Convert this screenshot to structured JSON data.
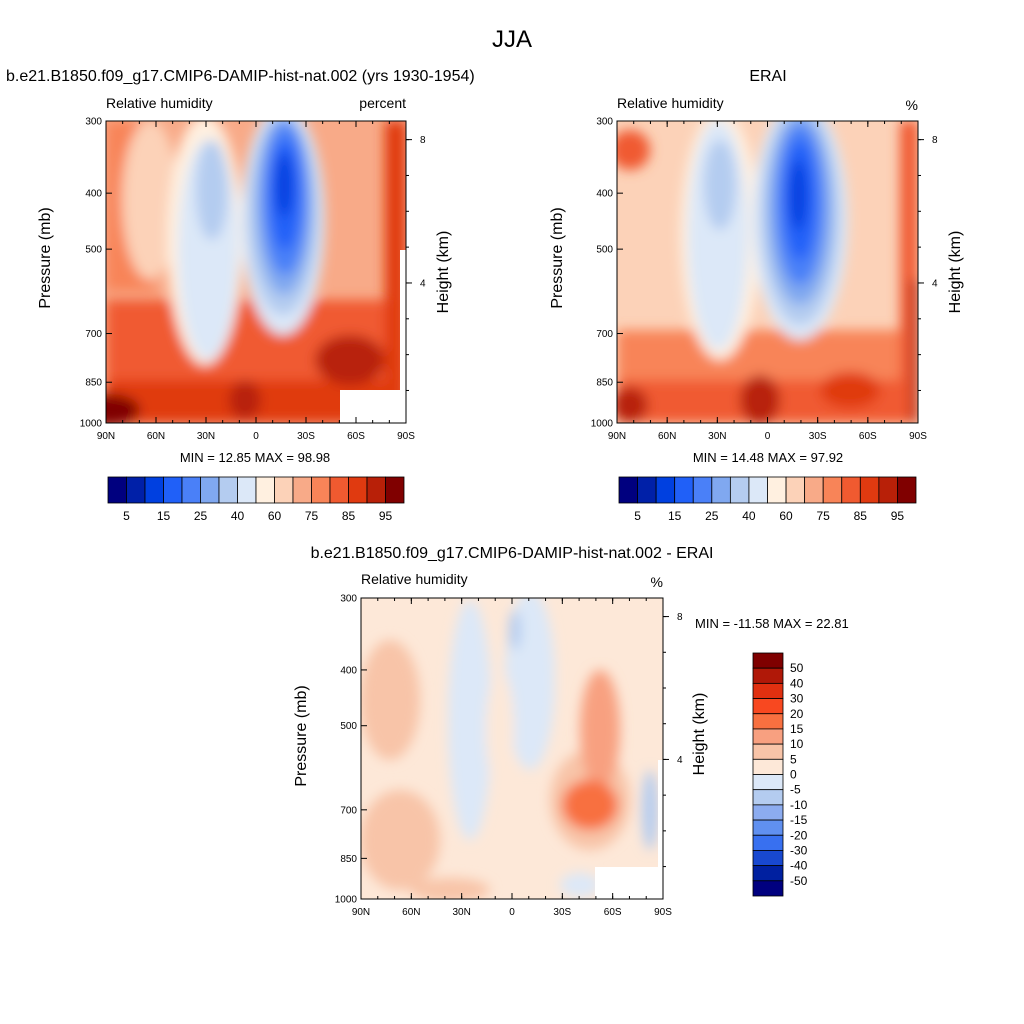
{
  "chart_data": [
    {
      "type": "heatmap",
      "page_title": "JJA",
      "title": "b.e21.B1850.f09_g17.CMIP6-DAMIP-hist-nat.002 (yrs 1930-1954)",
      "left_label": "Relative humidity",
      "units": "percent",
      "ylabel": "Pressure (mb)",
      "ylabel_right": "Height (km)",
      "xticks": [
        "90N",
        "60N",
        "30N",
        "0",
        "30S",
        "60S",
        "90S"
      ],
      "yticks": [
        "300",
        "400",
        "500",
        "700",
        "850",
        "1000"
      ],
      "yticks_right": [
        "8",
        "4"
      ],
      "ylim": [
        1000,
        300
      ],
      "min_label": "MIN =  12.85  MAX =  98.98",
      "min": 12.85,
      "max": 98.98,
      "colorbar_orientation": "horizontal",
      "colorbar_tick_labels": [
        "5",
        "15",
        "25",
        "40",
        "60",
        "75",
        "85",
        "95"
      ],
      "colors": [
        "#00007f",
        "#0020a8",
        "#0040e0",
        "#2060f8",
        "#4a80f8",
        "#80a8f0",
        "#b4ccf0",
        "#dce8f8",
        "#fff0e0",
        "#fcd2b8",
        "#f8aa88",
        "#f88458",
        "#f05a30",
        "#e03a10",
        "#b82008",
        "#800000"
      ]
    },
    {
      "type": "heatmap",
      "title": "ERAI",
      "left_label": "Relative humidity",
      "units": "%",
      "ylabel": "Pressure (mb)",
      "ylabel_right": "Height (km)",
      "xticks": [
        "90N",
        "60N",
        "30N",
        "0",
        "30S",
        "60S",
        "90S"
      ],
      "yticks": [
        "300",
        "400",
        "500",
        "700",
        "850",
        "1000"
      ],
      "yticks_right": [
        "8",
        "4"
      ],
      "ylim": [
        1000,
        300
      ],
      "min_label": "MIN =  14.48  MAX =  97.92",
      "min": 14.48,
      "max": 97.92,
      "colorbar_orientation": "horizontal",
      "colorbar_tick_labels": [
        "5",
        "15",
        "25",
        "40",
        "60",
        "75",
        "85",
        "95"
      ],
      "colors": [
        "#00007f",
        "#0020a8",
        "#0040e0",
        "#2060f8",
        "#4a80f8",
        "#80a8f0",
        "#b4ccf0",
        "#dce8f8",
        "#fff0e0",
        "#fcd2b8",
        "#f8aa88",
        "#f88458",
        "#f05a30",
        "#e03a10",
        "#b82008",
        "#800000"
      ]
    },
    {
      "type": "heatmap",
      "title": "b.e21.B1850.f09_g17.CMIP6-DAMIP-hist-nat.002 - ERAI",
      "left_label": "Relative humidity",
      "units": "%",
      "ylabel": "Pressure (mb)",
      "ylabel_right": "Height (km)",
      "xticks": [
        "90N",
        "60N",
        "30N",
        "0",
        "30S",
        "60S",
        "90S"
      ],
      "yticks": [
        "300",
        "400",
        "500",
        "700",
        "850",
        "1000"
      ],
      "yticks_right": [
        "8",
        "4"
      ],
      "ylim": [
        1000,
        300
      ],
      "min_label": "MIN = -11.58  MAX =  22.81",
      "min": -11.58,
      "max": 22.81,
      "colorbar_orientation": "vertical",
      "colorbar_tick_labels": [
        "50",
        "40",
        "30",
        "20",
        "15",
        "10",
        "5",
        "0",
        "-5",
        "-10",
        "-15",
        "-20",
        "-30",
        "-40",
        "-50"
      ],
      "colors": [
        "#7f0000",
        "#b01808",
        "#e03010",
        "#f84820",
        "#f87040",
        "#f8a080",
        "#f8c4a8",
        "#fde8d8",
        "#dce8f8",
        "#b4ccf0",
        "#8cacf0",
        "#6090f0",
        "#3870f0",
        "#1848d0",
        "#0020a0",
        "#00007f"
      ]
    }
  ]
}
